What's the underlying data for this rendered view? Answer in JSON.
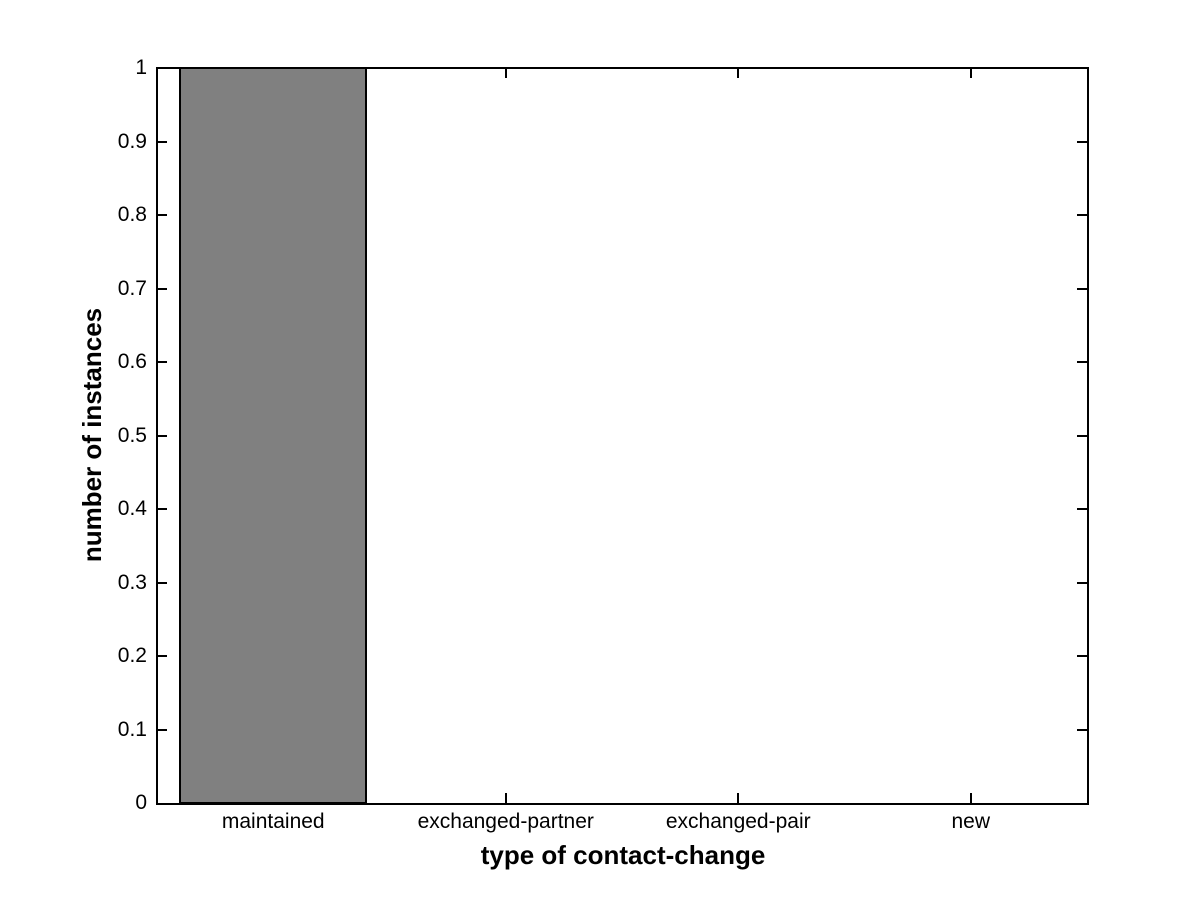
{
  "chart_data": {
    "type": "bar",
    "categories": [
      "maintained",
      "exchanged-partner",
      "exchanged-pair",
      "new"
    ],
    "values": [
      1,
      0,
      0,
      0
    ],
    "xlabel": "type of contact-change",
    "ylabel": "number of instances",
    "ylim": [
      0,
      1
    ],
    "yticks": [
      0,
      0.1,
      0.2,
      0.3,
      0.4,
      0.5,
      0.6,
      0.7,
      0.8,
      0.9,
      1
    ],
    "ytick_labels": [
      "0",
      "0.1",
      "0.2",
      "0.3",
      "0.4",
      "0.5",
      "0.6",
      "0.7",
      "0.8",
      "0.9",
      "1"
    ],
    "bar_width_fraction": 0.8,
    "grid": "off",
    "legend": "none",
    "colors": {
      "bar_fill": "#808080",
      "bar_edge": "#000000",
      "axis": "#000000",
      "text": "#000000",
      "background": "#ffffff"
    }
  }
}
